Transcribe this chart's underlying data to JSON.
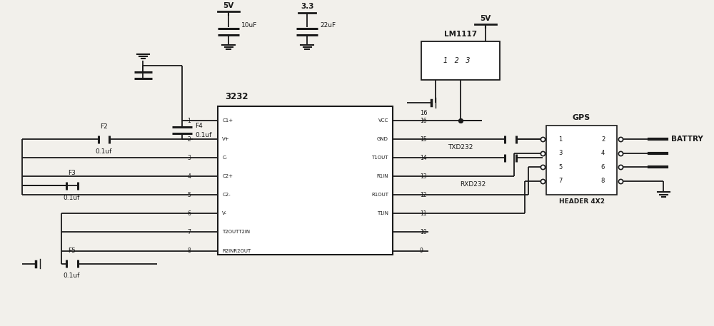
{
  "bg_color": "#f2f0eb",
  "line_color": "#1a1a1a",
  "fig_width": 10.0,
  "fig_height": 4.57,
  "dpi": 100,
  "ic_label": "3232",
  "lm_label": "LM1117",
  "gps_label": "GPS",
  "header_label": "HEADER 4X2",
  "battery_label": "BATTRY",
  "txd_label": "TXD232",
  "rxd_label": "RXD232",
  "v5_label": "5V",
  "v33_label": "3.3",
  "f2_label": "F2",
  "f3_label": "F3",
  "f4_label": "F4",
  "f5_label": "F5",
  "cap_10uf": "10uF",
  "cap_22uf": "22uF",
  "cap_01uf": "0.1uf"
}
